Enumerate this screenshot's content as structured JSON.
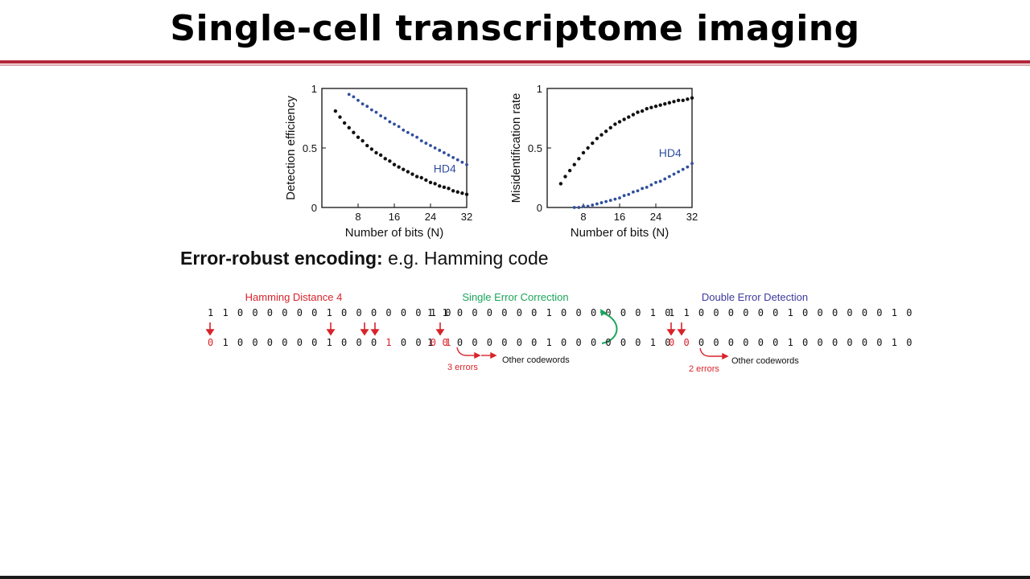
{
  "slide": {
    "title": "Single-cell transcriptome imaging",
    "subhead_bold": "Error-robust encoding:",
    "subhead_rest": " e.g. Hamming code"
  },
  "colors": {
    "accent_red": "#b2263a",
    "series_black": "#111111",
    "series_blue": "#2f4f9e",
    "green": "#1aa55a",
    "purple": "#3d3a9e",
    "red": "#d8232a"
  },
  "chart_data": [
    {
      "type": "scatter",
      "ylabel": "Detection efficiency",
      "xlabel": "Number of bits (N)",
      "xlim": [
        0,
        32
      ],
      "ylim": [
        0,
        1
      ],
      "xticks": [
        "8",
        "16",
        "24",
        "32"
      ],
      "yticks": [
        "0",
        "0.5",
        "1"
      ],
      "series": [
        {
          "name": "",
          "color": "#111111",
          "x": [
            3,
            4,
            5,
            6,
            7,
            8,
            9,
            10,
            11,
            12,
            13,
            14,
            15,
            16,
            17,
            18,
            19,
            20,
            21,
            22,
            23,
            24,
            25,
            26,
            27,
            28,
            29,
            30,
            31,
            32
          ],
          "y": [
            0.81,
            0.76,
            0.71,
            0.67,
            0.63,
            0.59,
            0.56,
            0.52,
            0.49,
            0.46,
            0.44,
            0.41,
            0.39,
            0.36,
            0.34,
            0.32,
            0.3,
            0.28,
            0.26,
            0.25,
            0.23,
            0.21,
            0.2,
            0.18,
            0.17,
            0.16,
            0.14,
            0.13,
            0.12,
            0.11
          ]
        },
        {
          "name": "HD4",
          "color": "#2f4f9e",
          "x": [
            6,
            7,
            8,
            9,
            10,
            11,
            12,
            13,
            14,
            15,
            16,
            17,
            18,
            19,
            20,
            21,
            22,
            23,
            24,
            25,
            26,
            27,
            28,
            29,
            30,
            31,
            32
          ],
          "y": [
            0.95,
            0.93,
            0.9,
            0.87,
            0.85,
            0.82,
            0.8,
            0.77,
            0.75,
            0.72,
            0.7,
            0.68,
            0.65,
            0.63,
            0.61,
            0.59,
            0.56,
            0.54,
            0.52,
            0.5,
            0.48,
            0.46,
            0.44,
            0.42,
            0.4,
            0.38,
            0.36
          ]
        }
      ]
    },
    {
      "type": "scatter",
      "ylabel": "Misidentification rate",
      "xlabel": "Number of bits (N)",
      "xlim": [
        0,
        32
      ],
      "ylim": [
        0,
        1
      ],
      "xticks": [
        "8",
        "16",
        "24",
        "32"
      ],
      "yticks": [
        "0",
        "0.5",
        "1"
      ],
      "series": [
        {
          "name": "",
          "color": "#111111",
          "x": [
            3,
            4,
            5,
            6,
            7,
            8,
            9,
            10,
            11,
            12,
            13,
            14,
            15,
            16,
            17,
            18,
            19,
            20,
            21,
            22,
            23,
            24,
            25,
            26,
            27,
            28,
            29,
            30,
            31,
            32
          ],
          "y": [
            0.2,
            0.26,
            0.31,
            0.36,
            0.41,
            0.46,
            0.5,
            0.54,
            0.58,
            0.61,
            0.64,
            0.67,
            0.7,
            0.72,
            0.74,
            0.76,
            0.78,
            0.8,
            0.81,
            0.83,
            0.84,
            0.85,
            0.86,
            0.87,
            0.88,
            0.89,
            0.9,
            0.9,
            0.91,
            0.92
          ]
        },
        {
          "name": "HD4",
          "color": "#2f4f9e",
          "x": [
            6,
            7,
            8,
            9,
            10,
            11,
            12,
            13,
            14,
            15,
            16,
            17,
            18,
            19,
            20,
            21,
            22,
            23,
            24,
            25,
            26,
            27,
            28,
            29,
            30,
            31,
            32
          ],
          "y": [
            0.0,
            0.0,
            0.01,
            0.01,
            0.02,
            0.03,
            0.04,
            0.05,
            0.06,
            0.07,
            0.08,
            0.1,
            0.11,
            0.13,
            0.14,
            0.16,
            0.17,
            0.19,
            0.21,
            0.22,
            0.24,
            0.26,
            0.28,
            0.3,
            0.32,
            0.34,
            0.37
          ]
        }
      ]
    }
  ],
  "hamming": {
    "panels": [
      {
        "title": "Hamming Distance 4",
        "title_color": "#d8232a",
        "row1": "1 1 0 0 0 0 0 0 1 0 0 0 0 0 0 1 0",
        "row2_segments": [
          {
            "text": "0",
            "red": true
          },
          {
            "text": " 1 0 0 0 0 0 0 1 0 0 0 ",
            "red": false
          },
          {
            "text": "1",
            "red": true
          },
          {
            "text": " 0 0 ",
            "red": false
          },
          {
            "text": "0 1",
            "red": true
          }
        ]
      },
      {
        "title": "Single Error Correction",
        "title_color": "#1aa55a",
        "row1": "1 1 0 0 0 0 0 0 1 0 0 0 0 0 0 1 0",
        "row2_segments": [
          {
            "text": "1 ",
            "red": false
          },
          {
            "text": "0",
            "red": true
          },
          {
            "text": " 0 0 0 0 0 0 1 0 0 0 0 0 0 1 0",
            "red": false
          }
        ],
        "errors_label": "3 errors",
        "codewords_label": "Other codewords"
      },
      {
        "title": "Double Error Detection",
        "title_color": "#3d3a9e",
        "row1": "1 1 0 0 0 0 0 0 1 0 0 0 0 0 0 1 0",
        "row2_segments": [
          {
            "text": "0 0",
            "red": true
          },
          {
            "text": " 0 0 0 0 0 0 1 0 0 0 0 0 0 1 0",
            "red": false
          }
        ],
        "errors_label": "2 errors",
        "codewords_label": "Other codewords"
      }
    ]
  }
}
